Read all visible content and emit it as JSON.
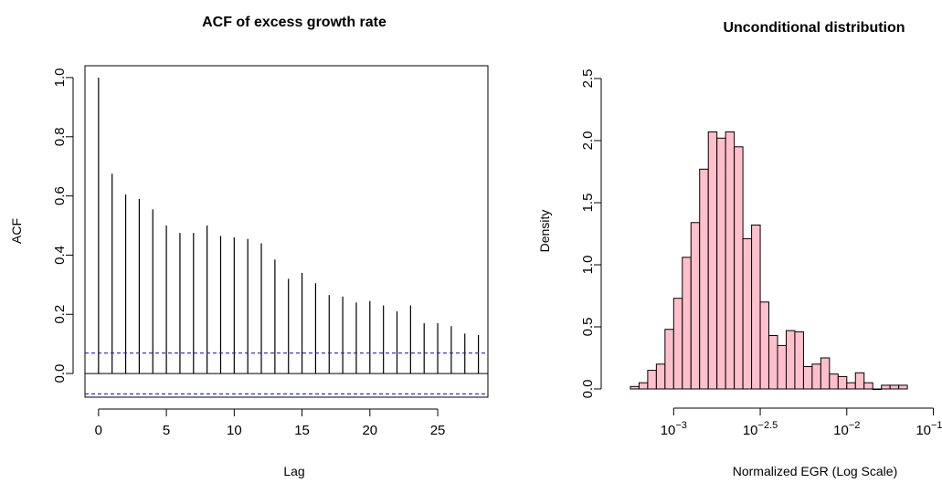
{
  "chart_data": [
    {
      "type": "bar",
      "title": "ACF of excess growth rate",
      "xlabel": "Lag",
      "ylabel": "ACF",
      "xlim": [
        -1,
        28.7
      ],
      "ylim": [
        -0.08,
        1.04
      ],
      "x_ticks": [
        0,
        5,
        10,
        15,
        20,
        25
      ],
      "y_ticks": [
        0.0,
        0.2,
        0.4,
        0.6,
        0.8,
        1.0
      ],
      "y_tick_labels": [
        "0.0",
        "0.2",
        "0.4",
        "0.6",
        "0.8",
        "1.0"
      ],
      "lags": [
        0,
        1,
        2,
        3,
        4,
        5,
        6,
        7,
        8,
        9,
        10,
        11,
        12,
        13,
        14,
        15,
        16,
        17,
        18,
        19,
        20,
        21,
        22,
        23,
        24,
        25,
        26,
        27,
        28
      ],
      "values": [
        1.0,
        0.675,
        0.605,
        0.59,
        0.555,
        0.5,
        0.475,
        0.475,
        0.5,
        0.465,
        0.46,
        0.455,
        0.44,
        0.385,
        0.32,
        0.34,
        0.305,
        0.265,
        0.26,
        0.24,
        0.245,
        0.23,
        0.21,
        0.23,
        0.17,
        0.17,
        0.16,
        0.135,
        0.13
      ],
      "confidence_band": 0.069,
      "colors": {
        "bars": "#000000",
        "band": "#2020e0",
        "box": "#000000"
      },
      "grid": false,
      "legend": "none"
    },
    {
      "type": "bar",
      "title": "Unconditional distribution",
      "xlabel": "Normalized EGR (Log Scale)",
      "ylabel": "Density",
      "ylim": [
        0,
        2.5
      ],
      "xlim_log10": [
        -3.35,
        -1.45
      ],
      "y_ticks": [
        0.0,
        0.5,
        1.0,
        1.5,
        2.0,
        2.5
      ],
      "y_tick_labels": [
        "0.0",
        "0.5",
        "1.0",
        "1.5",
        "2.0",
        "2.5"
      ],
      "x_ticks": [
        {
          "base": "10",
          "exp": "−3",
          "value": -3.0
        },
        {
          "base": "10",
          "exp": "−2.5",
          "value": -2.5
        },
        {
          "base": "10",
          "exp": "−2",
          "value": -2.0
        },
        {
          "base": "10",
          "exp": "−1.5",
          "value": -1.5
        }
      ],
      "bin_start_log10": -3.25,
      "bin_width_log10": 0.05,
      "densities": [
        0.02,
        0.05,
        0.15,
        0.2,
        0.48,
        0.73,
        1.06,
        1.34,
        1.77,
        2.07,
        2.02,
        2.07,
        1.95,
        1.21,
        1.32,
        0.7,
        0.43,
        0.35,
        0.47,
        0.46,
        0.18,
        0.2,
        0.25,
        0.12,
        0.1,
        0.05,
        0.13,
        0.05,
        0.0,
        0.03,
        0.03,
        0.03
      ],
      "colors": {
        "fill": "#ffc0cb",
        "stroke": "#000000"
      },
      "grid": false,
      "legend": "none"
    }
  ]
}
